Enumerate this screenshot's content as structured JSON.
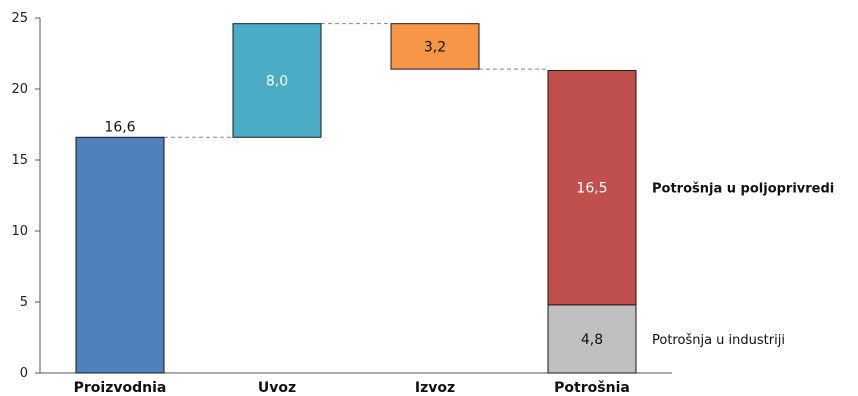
{
  "chart_data": {
    "type": "bar",
    "subtype": "waterfall",
    "categories": [
      "Proizvodnia",
      "Uvoz",
      "Izvoz",
      "Potrošnia"
    ],
    "ylim": [
      0,
      25
    ],
    "yticks": [
      0,
      5,
      10,
      15,
      20,
      25
    ],
    "grid": false,
    "bars": [
      {
        "category": "Proizvodnia",
        "segments": [
          {
            "base": 0,
            "top": 16.6,
            "value": 16.6,
            "label": "16,6",
            "color": "#4f81bd",
            "label_pos": "above",
            "label_color": "#111111"
          }
        ]
      },
      {
        "category": "Uvoz",
        "segments": [
          {
            "base": 16.6,
            "top": 24.6,
            "value": 8.0,
            "label": "8,0",
            "color": "#4bacc6",
            "label_pos": "inside",
            "label_color": "#ffffff"
          }
        ]
      },
      {
        "category": "Izvoz",
        "segments": [
          {
            "base": 21.4,
            "top": 24.6,
            "value": 3.2,
            "label": "3,2",
            "color": "#f79646",
            "label_pos": "inside",
            "label_color": "#111111"
          }
        ]
      },
      {
        "category": "Potrošnia",
        "segments": [
          {
            "base": 0,
            "top": 4.8,
            "value": 4.8,
            "label": "4,8",
            "color": "#c0c0c0",
            "label_pos": "inside",
            "label_color": "#111111",
            "annotation": "Potrošnja u industriji",
            "annotation_bold": false
          },
          {
            "base": 4.8,
            "top": 21.3,
            "value": 16.5,
            "label": "16,5",
            "color": "#c0504d",
            "label_pos": "inside",
            "label_color": "#ffffff",
            "annotation": "Potrošnja u poljoprivredi",
            "annotation_bold": true
          }
        ]
      }
    ],
    "connectors": [
      {
        "from": 0,
        "to": 1,
        "y": 16.6
      },
      {
        "from": 1,
        "to": 2,
        "y": 24.6
      },
      {
        "from": 2,
        "to": 3,
        "y": 21.4
      }
    ]
  }
}
